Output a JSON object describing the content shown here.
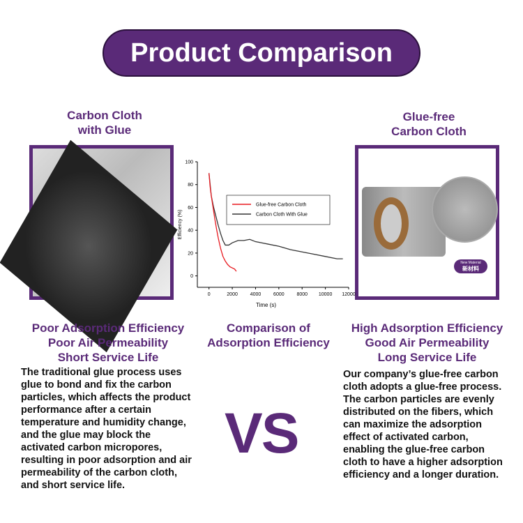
{
  "title": "Product Comparison",
  "left": {
    "heading_1": "Carbon  Cloth",
    "heading_2": "with Glue",
    "features": [
      "Poor Adsorption Efficiency",
      "Poor Air Permeability",
      "Short Service Life"
    ],
    "description": "The traditional glue process uses glue to bond and fix the carbon particles, which affects the product performance after a certain temperature and humidity change, and the glue may block the activated carbon micropores, resulting in poor adsorption and air permeability of the carbon cloth, and short service life."
  },
  "right": {
    "heading_1": "Glue-free",
    "heading_2": "Carbon Cloth",
    "badge_en": "New Material",
    "badge_cn": "新材料",
    "features": [
      "High Adsorption Efficiency",
      "Good Air Permeability",
      "Long Service Life"
    ],
    "description": "Our company’s glue-free carbon cloth adopts a glue-free process. The carbon particles are evenly distributed on the fibers, which can maximize the adsorption effect of activated carbon, enabling the glue-free carbon cloth to have a higher adsorption efficiency and a longer duration."
  },
  "center": {
    "caption_1": "Comparison of",
    "caption_2": "Adsorption Efficiency",
    "vs": "VS"
  },
  "colors": {
    "brand": "#5a2a78"
  },
  "chart_data": {
    "type": "line",
    "xlabel": "Time (s)",
    "ylabel": "Efficiency (%)",
    "xlim": [
      -1000,
      12000
    ],
    "ylim": [
      -10,
      100
    ],
    "xticks": [
      0,
      2000,
      4000,
      6000,
      8000,
      10000,
      12000
    ],
    "yticks": [
      0,
      20,
      40,
      60,
      80,
      100
    ],
    "legend": "upper-right",
    "series": [
      {
        "name": "Glue-free Carbon Cloth",
        "color": "#e8191f",
        "x": [
          0,
          100,
          200,
          350,
          500,
          650,
          800,
          1000,
          1200,
          1400,
          1600,
          1800,
          2000,
          2200,
          2350
        ],
        "y": [
          90,
          78,
          70,
          60,
          50,
          41,
          33,
          24,
          17,
          13,
          10,
          8,
          7,
          6,
          4
        ]
      },
      {
        "name": "Carbon Cloth With Glue",
        "color": "#333333",
        "x": [
          0,
          200,
          400,
          600,
          800,
          1000,
          1200,
          1400,
          1700,
          2000,
          2500,
          3000,
          3500,
          4000,
          5000,
          6000,
          7000,
          8000,
          9000,
          10000,
          11000,
          11500
        ],
        "y": [
          90,
          70,
          60,
          52,
          44,
          37,
          31,
          27,
          27,
          29,
          31,
          31,
          32,
          30,
          28,
          26,
          23,
          21,
          19,
          17,
          15,
          15
        ]
      }
    ]
  }
}
